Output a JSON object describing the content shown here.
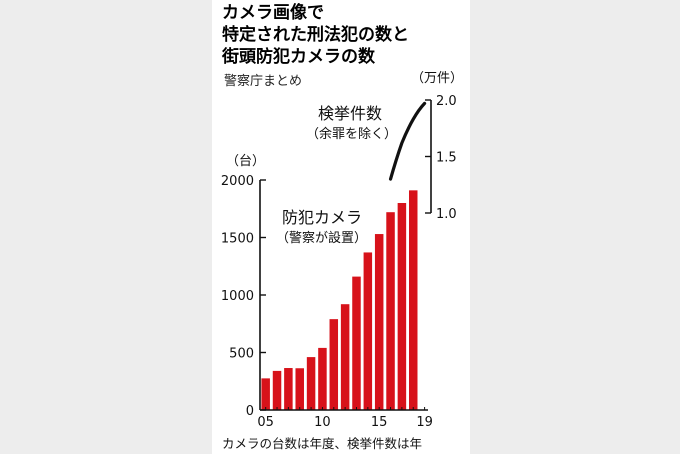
{
  "header": {
    "title_lines": [
      "カメラ画像で",
      "特定された刑法犯の数と",
      "街頭防犯カメラの数"
    ],
    "source": "警察庁まとめ"
  },
  "footnote": "カメラの台数は年度、検挙件数は年",
  "colors": {
    "bar": "#d7121a",
    "line": "#111111",
    "axis": "#111111"
  },
  "chart_data": {
    "type": "bar",
    "title": "カメラ画像で特定された刑法犯の数と街頭防犯カメラの数",
    "x": [
      2005,
      2006,
      2007,
      2008,
      2009,
      2010,
      2011,
      2012,
      2013,
      2014,
      2015,
      2016,
      2017,
      2018
    ],
    "x_tick_labels": [
      {
        "x": 2005,
        "label": "05"
      },
      {
        "x": 2010,
        "label": "10"
      },
      {
        "x": 2015,
        "label": "15"
      },
      {
        "x": 2019,
        "label": "19"
      }
    ],
    "left_axis": {
      "unit": "（台）",
      "ylim": [
        0,
        2000
      ],
      "ticks": [
        0,
        500,
        1000,
        1500,
        2000
      ]
    },
    "right_axis": {
      "unit": "（万件）",
      "ylim": [
        1.0,
        2.0
      ],
      "ticks": [
        "1.0",
        "1.5",
        "2.0"
      ]
    },
    "series": [
      {
        "name": "防犯カメラ",
        "note": "（警察が設置）",
        "type": "bar",
        "axis": "left",
        "values": [
          275,
          340,
          365,
          363,
          460,
          540,
          790,
          920,
          1160,
          1370,
          1530,
          1720,
          1800,
          1910
        ]
      },
      {
        "name": "検挙件数",
        "note": "（余罪を除く）",
        "type": "line",
        "axis": "right",
        "x": [
          2016,
          2017,
          2018,
          2019
        ],
        "values": [
          1.3,
          1.62,
          1.83,
          1.97
        ]
      }
    ]
  }
}
